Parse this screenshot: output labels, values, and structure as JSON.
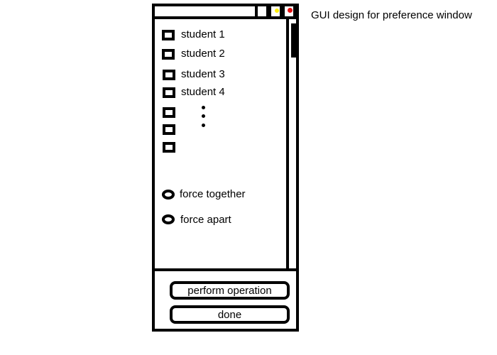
{
  "window": {
    "title_controls": {
      "minimize_icon": "minimize-box-icon",
      "maximize_icon": "maximize-dot-icon",
      "close_icon": "close-dot-icon",
      "maximize_color": "#ffee00",
      "close_color": "#e81010"
    }
  },
  "students": [
    {
      "label": "student 1"
    },
    {
      "label": "student 2"
    },
    {
      "label": "student 3"
    },
    {
      "label": "student 4"
    },
    {
      "label": ""
    },
    {
      "label": ""
    },
    {
      "label": ""
    }
  ],
  "options": {
    "force_together": "force together",
    "force_apart": "force apart"
  },
  "buttons": {
    "perform": "perform operation",
    "done": "done"
  },
  "caption": "GUI design for preference window"
}
